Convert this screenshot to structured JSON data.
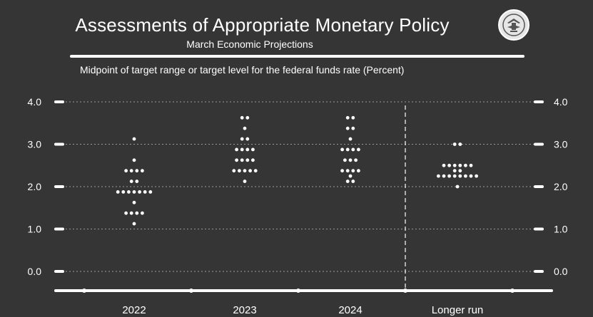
{
  "header": {
    "title": "Assessments of Appropriate Monetary Policy",
    "subtitle": "March Economic Projections",
    "caption": "Midpoint of target range or target level for the federal funds rate (Percent)"
  },
  "colors": {
    "background": "#353535",
    "foreground": "#ffffff",
    "grid": "#9a9a9a"
  },
  "seal": {
    "icon": "federal-reserve-seal-icon"
  },
  "chart_data": {
    "type": "scatter",
    "title": "Assessments of Appropriate Monetary Policy",
    "subtitle": "March Economic Projections",
    "ylabel": "Midpoint of target range or target level for the federal funds rate (Percent)",
    "ylim": [
      -0.5,
      4.0
    ],
    "yticks": [
      "0.0",
      "1.0",
      "2.0",
      "3.0",
      "4.0"
    ],
    "yaxes": [
      "left",
      "right"
    ],
    "grid": true,
    "categories": [
      "2022",
      "2023",
      "2024",
      "Longer run"
    ],
    "divider_before": "Longer run",
    "dots": [
      {
        "category": "2022",
        "rates": [
          {
            "value": 3.125,
            "count": 1
          },
          {
            "value": 2.625,
            "count": 1
          },
          {
            "value": 2.375,
            "count": 4
          },
          {
            "value": 2.125,
            "count": 2
          },
          {
            "value": 1.875,
            "count": 7
          },
          {
            "value": 1.625,
            "count": 1
          },
          {
            "value": 1.375,
            "count": 4
          },
          {
            "value": 1.125,
            "count": 1
          }
        ]
      },
      {
        "category": "2023",
        "rates": [
          {
            "value": 3.625,
            "count": 2
          },
          {
            "value": 3.375,
            "count": 1
          },
          {
            "value": 3.125,
            "count": 2
          },
          {
            "value": 2.875,
            "count": 4
          },
          {
            "value": 2.625,
            "count": 4
          },
          {
            "value": 2.375,
            "count": 5
          },
          {
            "value": 2.125,
            "count": 1
          }
        ]
      },
      {
        "category": "2024",
        "rates": [
          {
            "value": 3.625,
            "count": 2
          },
          {
            "value": 3.375,
            "count": 2
          },
          {
            "value": 3.125,
            "count": 1
          },
          {
            "value": 2.875,
            "count": 4
          },
          {
            "value": 2.625,
            "count": 3
          },
          {
            "value": 2.375,
            "count": 4
          },
          {
            "value": 2.25,
            "count": 1
          },
          {
            "value": 2.125,
            "count": 2
          }
        ]
      },
      {
        "category": "Longer run",
        "rates": [
          {
            "value": 3.0,
            "count": 2
          },
          {
            "value": 2.5,
            "count": 6
          },
          {
            "value": 2.375,
            "count": 2
          },
          {
            "value": 2.25,
            "count": 8
          },
          {
            "value": 2.0,
            "count": 1
          }
        ]
      }
    ]
  }
}
